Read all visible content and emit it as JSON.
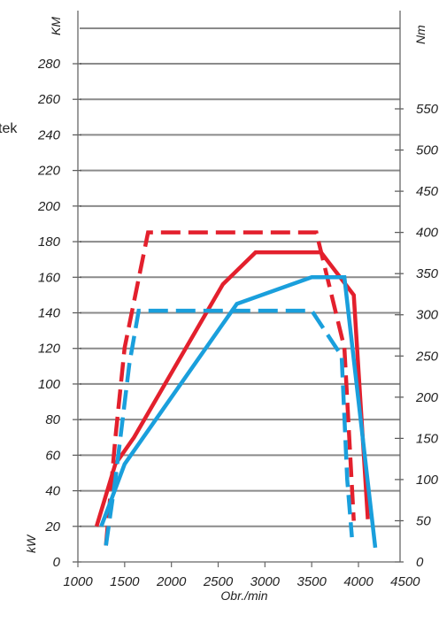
{
  "chart_data": {
    "type": "line",
    "side_label": "tek",
    "left_axis_unit_top": "KM",
    "left_axis_unit_bottom": "kW",
    "right_axis_unit": "Nm",
    "xlabel": "Obr./min",
    "x_ticks": [
      1000,
      1500,
      2000,
      2500,
      3000,
      3500,
      4000,
      4500
    ],
    "left_ticks": [
      0,
      20,
      40,
      60,
      80,
      100,
      120,
      140,
      160,
      180,
      200,
      220,
      240,
      260,
      280
    ],
    "right_ticks": [
      0,
      50,
      100,
      150,
      200,
      250,
      300,
      350,
      400,
      450,
      500,
      550
    ],
    "grid": true,
    "series": [
      {
        "color": "#e3202d",
        "style": "dashed",
        "axis": "right",
        "x": [
          1300,
          1400,
          1500,
          1750,
          3550,
          3850,
          3950
        ],
        "y": [
          20,
          150,
          260,
          400,
          400,
          260,
          50
        ]
      },
      {
        "color": "#e3202d",
        "style": "solid",
        "axis": "left",
        "x": [
          1200,
          1400,
          1600,
          2550,
          2900,
          3600,
          3950,
          4100
        ],
        "y": [
          20,
          55,
          70,
          156,
          174,
          174,
          150,
          24
        ]
      },
      {
        "color": "#1a9fdc",
        "style": "dashed",
        "axis": "right",
        "x": [
          1300,
          1400,
          1550,
          1650,
          3500,
          3820,
          3880,
          3930
        ],
        "y": [
          20,
          100,
          240,
          305,
          305,
          250,
          100,
          30
        ]
      },
      {
        "color": "#1a9fdc",
        "style": "solid",
        "axis": "left",
        "x": [
          1250,
          1500,
          2700,
          3500,
          3850,
          4180
        ],
        "y": [
          20,
          55,
          145,
          160,
          160,
          8
        ]
      }
    ]
  }
}
